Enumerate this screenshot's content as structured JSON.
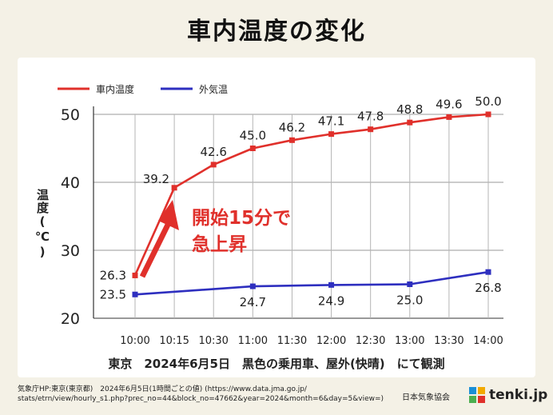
{
  "title": "車内温度の変化",
  "chart_data": {
    "type": "line",
    "categories": [
      "10:00",
      "10:15",
      "10:30",
      "11:00",
      "11:30",
      "12:00",
      "12:30",
      "13:00",
      "13:30",
      "14:00"
    ],
    "series": [
      {
        "name": "車内温度",
        "color": "#e0302b",
        "values": [
          26.3,
          39.2,
          42.6,
          45.0,
          46.2,
          47.1,
          47.8,
          48.8,
          49.6,
          50.0
        ],
        "labels": [
          "26.3",
          "39.2",
          "42.6",
          "45.0",
          "46.2",
          "47.1",
          "47.8",
          "48.8",
          "49.6",
          "50.0"
        ]
      },
      {
        "name": "外気温",
        "color": "#2e2fbf",
        "points": [
          {
            "category": "10:00",
            "value": 23.5,
            "label": "23.5"
          },
          {
            "category": "11:00",
            "value": 24.7,
            "label": "24.7"
          },
          {
            "category": "12:00",
            "value": 24.9,
            "label": "24.9"
          },
          {
            "category": "13:00",
            "value": 25.0,
            "label": "25.0"
          },
          {
            "category": "14:00",
            "value": 26.8,
            "label": "26.8"
          }
        ]
      }
    ],
    "ylabel": "温度(℃)",
    "ylim": [
      20,
      50
    ],
    "yticks": [
      20,
      30,
      40,
      50
    ],
    "grid": true,
    "legend": "top-left",
    "annotation": {
      "line1": "開始15分で",
      "line2": "急上昇",
      "color": "#e0302b"
    }
  },
  "caption": "東京　2024年6月5日　黒色の乗用車、屋外(快晴)　にて観測",
  "source": "気象庁HP:東京(東京都)　2024年6月5日(1時間ごとの値) (https://www.data.jma.go.jp/\nstats/etrn/view/hourly_s1.php?prec_no=44&block_no=47662&year=2024&month=6&day=5&view=)",
  "organization": "日本気象協会",
  "brand": "tenki.jp"
}
